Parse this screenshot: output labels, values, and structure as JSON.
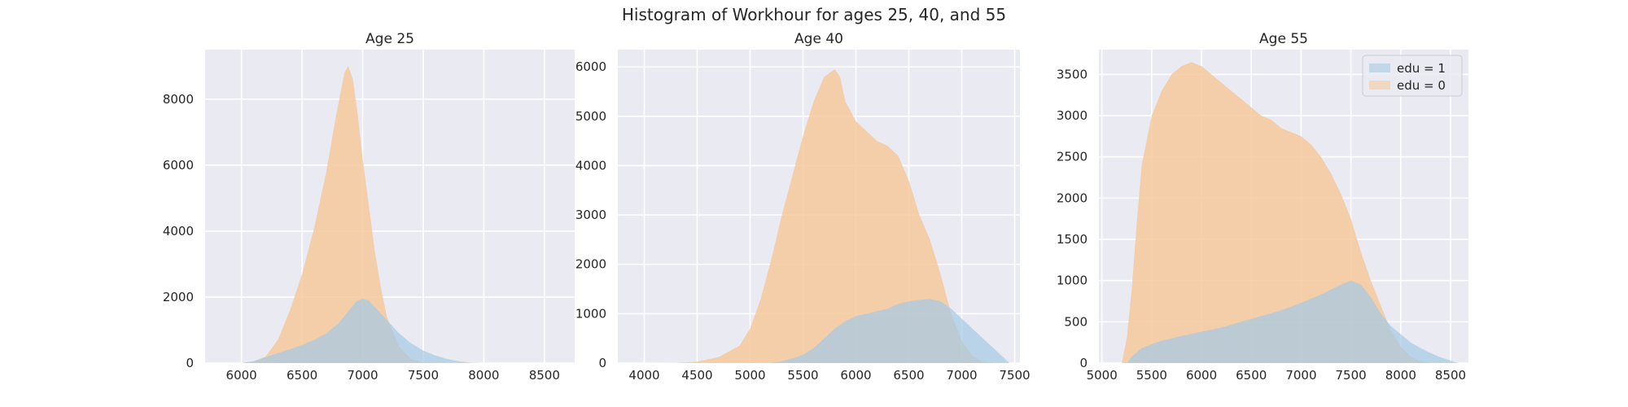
{
  "suptitle": "Histogram of Workhour for ages 25, 40, and 55",
  "legend": {
    "placement": "top-right of third panel",
    "entries": [
      {
        "label": "edu = 1",
        "color": "#a6cbe3"
      },
      {
        "label": "edu = 0",
        "color": "#f5c99b"
      }
    ]
  },
  "colors": {
    "background": "#eaeaf2",
    "grid": "#ffffff",
    "edu1": "#a6cbe3",
    "edu0": "#f5c99b",
    "overlap": "#b8c4a0"
  },
  "chart_data": [
    {
      "type": "area",
      "title": "Age 25",
      "xlim": [
        5700,
        8750
      ],
      "ylim": [
        0,
        9500
      ],
      "xticks": [
        6000,
        6500,
        7000,
        7500,
        8000,
        8500
      ],
      "yticks": [
        0,
        2000,
        4000,
        6000,
        8000
      ],
      "grid": true,
      "series": [
        {
          "name": "edu = 0",
          "points": [
            [
              6000,
              0
            ],
            [
              6100,
              40
            ],
            [
              6200,
              200
            ],
            [
              6300,
              700
            ],
            [
              6400,
              1600
            ],
            [
              6500,
              2700
            ],
            [
              6600,
              4100
            ],
            [
              6700,
              5800
            ],
            [
              6780,
              7500
            ],
            [
              6850,
              8800
            ],
            [
              6880,
              9000
            ],
            [
              6920,
              8600
            ],
            [
              6960,
              7500
            ],
            [
              7000,
              6200
            ],
            [
              7050,
              4800
            ],
            [
              7100,
              3400
            ],
            [
              7150,
              2300
            ],
            [
              7200,
              1400
            ],
            [
              7300,
              500
            ],
            [
              7400,
              120
            ],
            [
              7500,
              20
            ],
            [
              7600,
              0
            ]
          ]
        },
        {
          "name": "edu = 1",
          "points": [
            [
              6000,
              0
            ],
            [
              6100,
              60
            ],
            [
              6200,
              180
            ],
            [
              6300,
              300
            ],
            [
              6400,
              420
            ],
            [
              6500,
              550
            ],
            [
              6600,
              700
            ],
            [
              6700,
              900
            ],
            [
              6800,
              1200
            ],
            [
              6900,
              1650
            ],
            [
              6950,
              1880
            ],
            [
              7000,
              1950
            ],
            [
              7050,
              1900
            ],
            [
              7100,
              1700
            ],
            [
              7200,
              1300
            ],
            [
              7300,
              900
            ],
            [
              7400,
              600
            ],
            [
              7500,
              380
            ],
            [
              7600,
              230
            ],
            [
              7700,
              120
            ],
            [
              7800,
              50
            ],
            [
              7900,
              10
            ],
            [
              8000,
              0
            ]
          ]
        }
      ]
    },
    {
      "type": "area",
      "title": "Age 40",
      "xlim": [
        3750,
        7550
      ],
      "ylim": [
        0,
        6350
      ],
      "xticks": [
        4000,
        4500,
        5000,
        5500,
        6000,
        6500,
        7000,
        7500
      ],
      "yticks": [
        0,
        1000,
        2000,
        3000,
        4000,
        5000,
        6000
      ],
      "grid": true,
      "series": [
        {
          "name": "edu = 0",
          "points": [
            [
              4000,
              0
            ],
            [
              4300,
              5
            ],
            [
              4500,
              30
            ],
            [
              4700,
              120
            ],
            [
              4900,
              350
            ],
            [
              5000,
              700
            ],
            [
              5100,
              1300
            ],
            [
              5200,
              2100
            ],
            [
              5300,
              3000
            ],
            [
              5400,
              3800
            ],
            [
              5500,
              4600
            ],
            [
              5600,
              5300
            ],
            [
              5700,
              5800
            ],
            [
              5800,
              5950
            ],
            [
              5850,
              5800
            ],
            [
              5900,
              5300
            ],
            [
              6000,
              4900
            ],
            [
              6100,
              4700
            ],
            [
              6200,
              4500
            ],
            [
              6300,
              4400
            ],
            [
              6400,
              4200
            ],
            [
              6500,
              3700
            ],
            [
              6600,
              3000
            ],
            [
              6700,
              2500
            ],
            [
              6800,
              1800
            ],
            [
              6900,
              1000
            ],
            [
              7000,
              450
            ],
            [
              7100,
              150
            ],
            [
              7200,
              30
            ],
            [
              7300,
              0
            ]
          ]
        },
        {
          "name": "edu = 1",
          "points": [
            [
              5200,
              0
            ],
            [
              5300,
              40
            ],
            [
              5400,
              90
            ],
            [
              5500,
              170
            ],
            [
              5600,
              300
            ],
            [
              5700,
              500
            ],
            [
              5800,
              700
            ],
            [
              5900,
              850
            ],
            [
              6000,
              950
            ],
            [
              6100,
              1000
            ],
            [
              6200,
              1050
            ],
            [
              6300,
              1100
            ],
            [
              6400,
              1200
            ],
            [
              6500,
              1250
            ],
            [
              6600,
              1280
            ],
            [
              6700,
              1300
            ],
            [
              6800,
              1250
            ],
            [
              6900,
              1100
            ],
            [
              7000,
              900
            ],
            [
              7100,
              700
            ],
            [
              7200,
              500
            ],
            [
              7300,
              300
            ],
            [
              7400,
              100
            ],
            [
              7450,
              0
            ]
          ]
        }
      ]
    },
    {
      "type": "area",
      "title": "Age 55",
      "xlim": [
        4970,
        8680
      ],
      "ylim": [
        0,
        3800
      ],
      "xticks": [
        5000,
        5500,
        6000,
        6500,
        7000,
        7500,
        8000,
        8500
      ],
      "yticks": [
        0,
        500,
        1000,
        1500,
        2000,
        2500,
        3000,
        3500
      ],
      "grid": true,
      "series": [
        {
          "name": "edu = 0",
          "points": [
            [
              5200,
              0
            ],
            [
              5250,
              300
            ],
            [
              5300,
              900
            ],
            [
              5350,
              1700
            ],
            [
              5400,
              2400
            ],
            [
              5500,
              3000
            ],
            [
              5600,
              3300
            ],
            [
              5700,
              3500
            ],
            [
              5800,
              3600
            ],
            [
              5900,
              3650
            ],
            [
              6000,
              3600
            ],
            [
              6100,
              3500
            ],
            [
              6200,
              3400
            ],
            [
              6300,
              3300
            ],
            [
              6400,
              3200
            ],
            [
              6500,
              3100
            ],
            [
              6600,
              3000
            ],
            [
              6700,
              2950
            ],
            [
              6800,
              2850
            ],
            [
              6900,
              2800
            ],
            [
              7000,
              2750
            ],
            [
              7100,
              2650
            ],
            [
              7200,
              2500
            ],
            [
              7300,
              2300
            ],
            [
              7400,
              2050
            ],
            [
              7500,
              1750
            ],
            [
              7600,
              1350
            ],
            [
              7700,
              1000
            ],
            [
              7800,
              700
            ],
            [
              7900,
              400
            ],
            [
              8000,
              200
            ],
            [
              8100,
              80
            ],
            [
              8200,
              20
            ],
            [
              8300,
              0
            ]
          ]
        },
        {
          "name": "edu = 1",
          "points": [
            [
              5250,
              0
            ],
            [
              5300,
              80
            ],
            [
              5400,
              180
            ],
            [
              5500,
              230
            ],
            [
              5600,
              270
            ],
            [
              5800,
              330
            ],
            [
              6000,
              380
            ],
            [
              6200,
              430
            ],
            [
              6400,
              500
            ],
            [
              6600,
              570
            ],
            [
              6800,
              640
            ],
            [
              7000,
              730
            ],
            [
              7200,
              830
            ],
            [
              7400,
              950
            ],
            [
              7500,
              1000
            ],
            [
              7600,
              950
            ],
            [
              7700,
              800
            ],
            [
              7800,
              600
            ],
            [
              7900,
              450
            ],
            [
              8000,
              350
            ],
            [
              8100,
              250
            ],
            [
              8200,
              180
            ],
            [
              8300,
              120
            ],
            [
              8400,
              70
            ],
            [
              8500,
              30
            ],
            [
              8580,
              0
            ]
          ]
        }
      ]
    }
  ]
}
